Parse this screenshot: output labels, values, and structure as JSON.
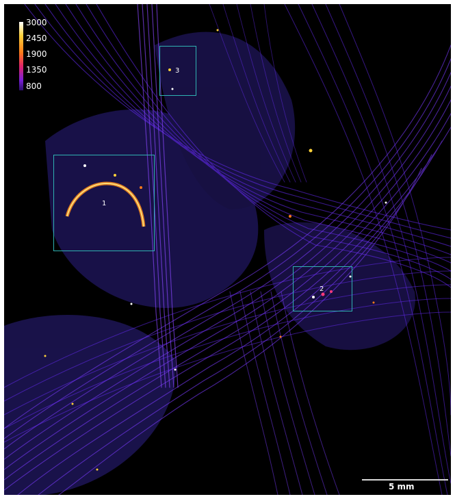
{
  "colorbar": {
    "ticks": [
      "3000",
      "2450",
      "1900",
      "1350",
      "800"
    ],
    "colors": [
      "#ffffff",
      "#ffd23a",
      "#ff7a1a",
      "#e0246a",
      "#7a1fd6",
      "#2b0e6b"
    ]
  },
  "rois": [
    {
      "label": "1"
    },
    {
      "label": "2"
    },
    {
      "label": "3"
    }
  ],
  "scalebar": {
    "label": "5 mm"
  },
  "colors": {
    "background": "#000000",
    "fiber": "#6a2cff",
    "roi_border": "#2fb3b3"
  }
}
